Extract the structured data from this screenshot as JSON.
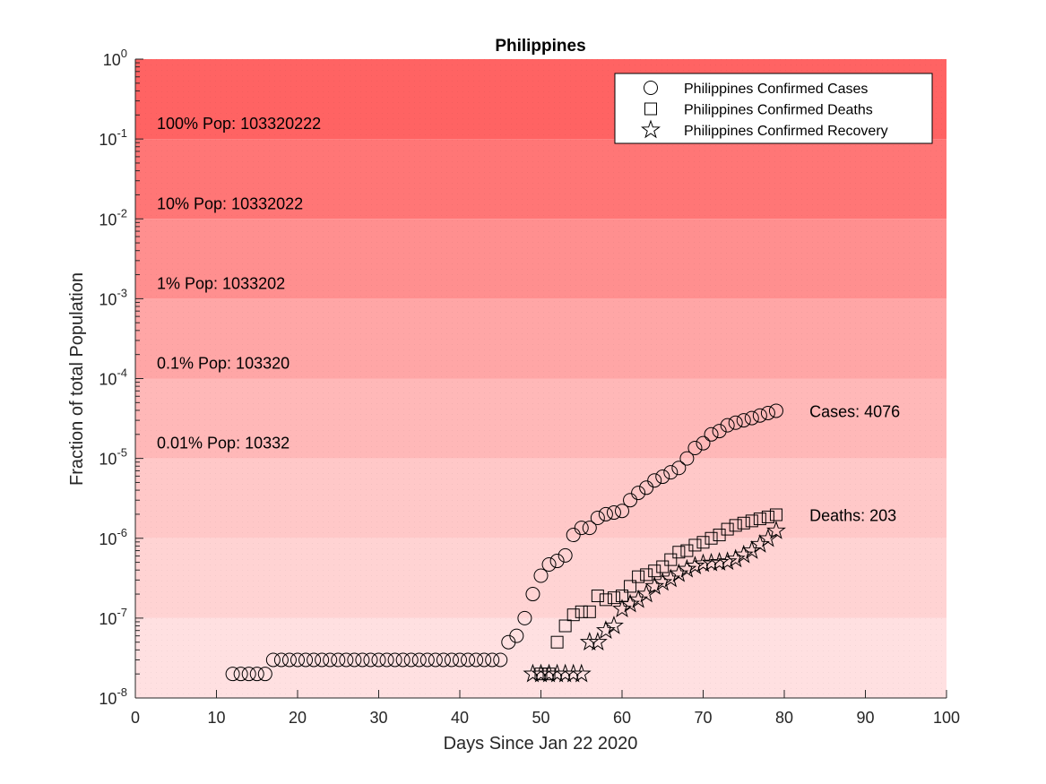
{
  "chart_data": {
    "type": "scatter",
    "title": "Philippines",
    "xlabel": "Days Since Jan 22 2020",
    "ylabel": "Fraction of total Population",
    "xlim": [
      0,
      100
    ],
    "ylim": [
      1e-08,
      1
    ],
    "yscale": "log",
    "xticks": [
      0,
      10,
      20,
      30,
      40,
      50,
      60,
      70,
      80,
      90,
      100
    ],
    "yticks": [
      {
        "base": "10",
        "exp": "0",
        "value": 1
      },
      {
        "base": "10",
        "exp": "-1",
        "value": 0.1
      },
      {
        "base": "10",
        "exp": "-2",
        "value": 0.01
      },
      {
        "base": "10",
        "exp": "-3",
        "value": 0.001
      },
      {
        "base": "10",
        "exp": "-4",
        "value": 0.0001
      },
      {
        "base": "10",
        "exp": "-5",
        "value": 1e-05
      },
      {
        "base": "10",
        "exp": "-6",
        "value": 1e-06
      },
      {
        "base": "10",
        "exp": "-7",
        "value": 1e-07
      },
      {
        "base": "10",
        "exp": "-8",
        "value": 1e-08
      }
    ],
    "bands": [
      {
        "from": 0.1,
        "to": 1,
        "color": "#ff6363",
        "label": "100% Pop: 103320222"
      },
      {
        "from": 0.01,
        "to": 0.1,
        "color": "#ff7676",
        "label": "10% Pop: 10332022"
      },
      {
        "from": 0.001,
        "to": 0.01,
        "color": "#ff8f8f",
        "label": "1% Pop: 1033202"
      },
      {
        "from": 0.0001,
        "to": 0.001,
        "color": "#ffa6a6",
        "label": "0.1% Pop: 103320"
      },
      {
        "from": 1e-05,
        "to": 0.0001,
        "color": "#ffb8b8",
        "label": "0.01% Pop: 10332"
      },
      {
        "from": 1e-06,
        "to": 1e-05,
        "color": "#ffc8c8",
        "label": ""
      },
      {
        "from": 1e-07,
        "to": 1e-06,
        "color": "#ffd3d3",
        "label": ""
      },
      {
        "from": 1e-08,
        "to": 1e-07,
        "color": "#ffe0e1",
        "label": ""
      }
    ],
    "legend_position": "top-right",
    "series": [
      {
        "name": "Philippines Confirmed Cases",
        "marker": "circle",
        "x": [
          12,
          13,
          14,
          15,
          16,
          17,
          18,
          19,
          20,
          21,
          22,
          23,
          24,
          25,
          26,
          27,
          28,
          29,
          30,
          31,
          32,
          33,
          34,
          35,
          36,
          37,
          38,
          39,
          40,
          41,
          42,
          43,
          44,
          45,
          46,
          47,
          48,
          49,
          50,
          51,
          52,
          53,
          54,
          55,
          56,
          57,
          58,
          59,
          60,
          61,
          62,
          63,
          64,
          65,
          66,
          67,
          68,
          69,
          70,
          71,
          72,
          73,
          74,
          75,
          76,
          77,
          78,
          79
        ],
        "y": [
          2e-08,
          2e-08,
          2e-08,
          2e-08,
          2e-08,
          3e-08,
          3e-08,
          3e-08,
          3e-08,
          3e-08,
          3e-08,
          3e-08,
          3e-08,
          3e-08,
          3e-08,
          3e-08,
          3e-08,
          3e-08,
          3e-08,
          3e-08,
          3e-08,
          3e-08,
          3e-08,
          3e-08,
          3e-08,
          3e-08,
          3e-08,
          3e-08,
          3e-08,
          3e-08,
          3e-08,
          3e-08,
          3e-08,
          3e-08,
          5e-08,
          6e-08,
          1e-07,
          2e-07,
          3.4e-07,
          4.7e-07,
          5.2e-07,
          6.1e-07,
          1.1e-06,
          1.35e-06,
          1.35e-06,
          1.8e-06,
          2e-06,
          2.1e-06,
          2.2e-06,
          3e-06,
          3.7e-06,
          4.3e-06,
          5.3e-06,
          5.9e-06,
          6.7e-06,
          7.6e-06,
          1e-05,
          1.35e-05,
          1.55e-05,
          2e-05,
          2.2e-05,
          2.6e-05,
          2.8e-05,
          3e-05,
          3.2e-05,
          3.45e-05,
          3.7e-05,
          3.95e-05
        ]
      },
      {
        "name": "Philippines Confirmed Deaths",
        "marker": "square",
        "x": [
          50,
          51,
          52,
          53,
          54,
          55,
          56,
          57,
          58,
          59,
          60,
          61,
          62,
          63,
          64,
          65,
          66,
          67,
          68,
          69,
          70,
          71,
          72,
          73,
          74,
          75,
          76,
          77,
          78,
          79
        ],
        "y": [
          2e-08,
          2e-08,
          5e-08,
          8e-08,
          1.1e-07,
          1.2e-07,
          1.2e-07,
          1.9e-07,
          1.7e-07,
          1.8e-07,
          1.9e-07,
          2.5e-07,
          3.3e-07,
          3.5e-07,
          3.9e-07,
          4.4e-07,
          5.4e-07,
          6.7e-07,
          7e-07,
          8.2e-07,
          8.9e-07,
          1e-06,
          1.1e-06,
          1.3e-06,
          1.45e-06,
          1.55e-06,
          1.65e-06,
          1.75e-06,
          1.85e-06,
          1.97e-06
        ]
      },
      {
        "name": "Philippines Confirmed Recovery",
        "marker": "star",
        "x": [
          49,
          50,
          51,
          52,
          53,
          54,
          55,
          56,
          57,
          58,
          59,
          60,
          61,
          62,
          63,
          64,
          65,
          66,
          67,
          68,
          69,
          70,
          71,
          72,
          73,
          74,
          75,
          76,
          77,
          78,
          79
        ],
        "y": [
          2e-08,
          2e-08,
          2e-08,
          2e-08,
          2e-08,
          2e-08,
          2e-08,
          5e-08,
          5e-08,
          7e-08,
          8e-08,
          1.3e-07,
          1.5e-07,
          1.7e-07,
          2e-07,
          2.5e-07,
          2.8e-07,
          3.1e-07,
          3.6e-07,
          4.1e-07,
          4.5e-07,
          4.8e-07,
          4.9e-07,
          5e-07,
          5.1e-07,
          5.5e-07,
          6.2e-07,
          7e-07,
          8.4e-07,
          9.9e-07,
          1.24e-06
        ]
      }
    ],
    "annotations": [
      {
        "text": "Cases: 4076",
        "x": 82,
        "y": 3.95e-05
      },
      {
        "text": "Deaths: 203",
        "x": 82,
        "y": 1.97e-06
      }
    ]
  }
}
